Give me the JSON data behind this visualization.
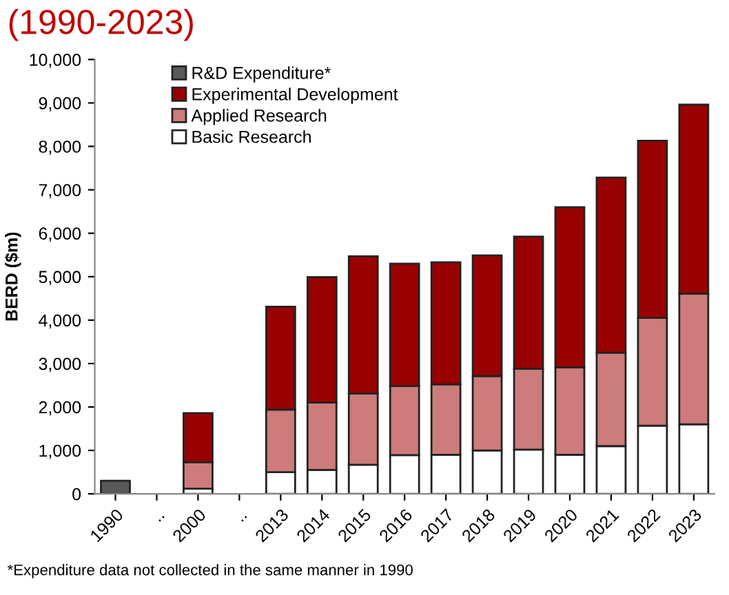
{
  "chart_data": {
    "type": "bar",
    "stacked": true,
    "title": "(1990-2023)",
    "ylabel": "BERD ($m)",
    "categories": [
      "1990",
      "..",
      "2000",
      "..",
      "2013",
      "2014",
      "2015",
      "2016",
      "2017",
      "2018",
      "2019",
      "2020",
      "2021",
      "2022",
      "2023"
    ],
    "series": [
      {
        "name": "Basic Research",
        "color": "#ffffff",
        "values": [
          null,
          null,
          120,
          null,
          500,
          550,
          670,
          890,
          900,
          1000,
          1020,
          900,
          1100,
          1570,
          1600
        ]
      },
      {
        "name": "Applied Research",
        "color": "#cd7b7b",
        "values": [
          null,
          null,
          610,
          null,
          1440,
          1550,
          1640,
          1590,
          1620,
          1710,
          1860,
          2010,
          2150,
          2480,
          3010
        ]
      },
      {
        "name": "Experimental Development",
        "color": "#990000",
        "values": [
          null,
          null,
          1130,
          null,
          2370,
          2890,
          3160,
          2820,
          2810,
          2780,
          3040,
          3690,
          4030,
          4080,
          4350
        ]
      },
      {
        "name": "R&D Expenditure*",
        "color": "#595959",
        "values": [
          300,
          null,
          null,
          null,
          null,
          null,
          null,
          null,
          null,
          null,
          null,
          null,
          null,
          null,
          null
        ]
      }
    ],
    "ylim": [
      0,
      10000
    ],
    "yticks": [
      {
        "value": 0,
        "label": "0"
      },
      {
        "value": 1000,
        "label": "1,000"
      },
      {
        "value": 2000,
        "label": "2,000"
      },
      {
        "value": 3000,
        "label": "3,000"
      },
      {
        "value": 4000,
        "label": "4,000"
      },
      {
        "value": 5000,
        "label": "5,000"
      },
      {
        "value": 6000,
        "label": "6,000"
      },
      {
        "value": 7000,
        "label": "7,000"
      },
      {
        "value": 8000,
        "label": "8,000"
      },
      {
        "value": 9000,
        "label": "9,000"
      },
      {
        "value": 10000,
        "label": "10,000"
      }
    ],
    "legend": "top left",
    "annotations": [
      "*Expenditure data not collected in the same manner in 1990"
    ]
  }
}
